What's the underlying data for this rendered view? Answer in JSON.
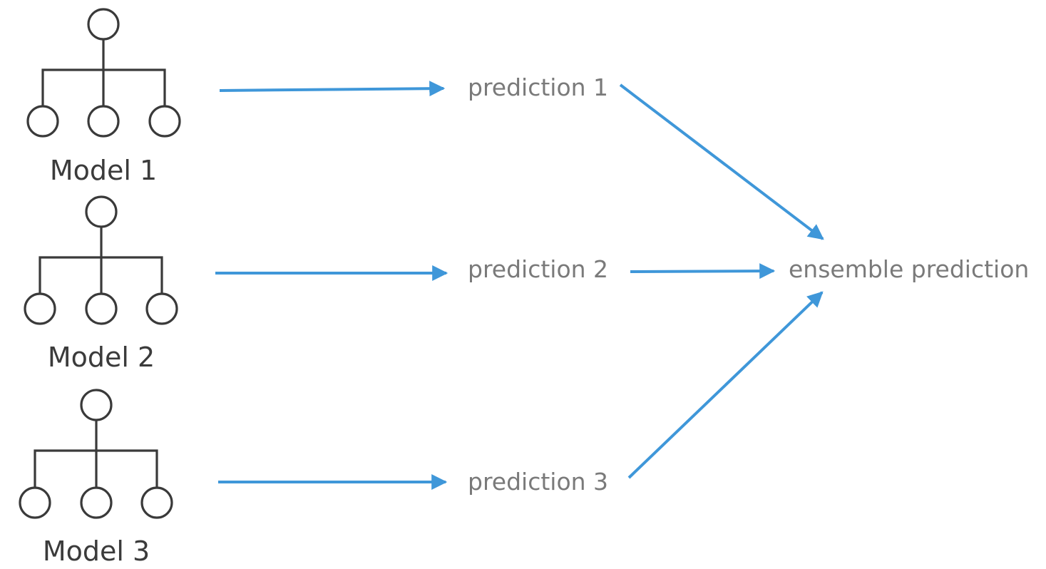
{
  "models": [
    {
      "label": "Model 1",
      "icon": "tree-icon"
    },
    {
      "label": "Model 2",
      "icon": "tree-icon"
    },
    {
      "label": "Model 3",
      "icon": "tree-icon"
    }
  ],
  "predictions": [
    {
      "label": "prediction 1"
    },
    {
      "label": "prediction 2"
    },
    {
      "label": "prediction 3"
    }
  ],
  "ensemble": {
    "label": "ensemble prediction"
  },
  "colors": {
    "arrow": "#3f97d9",
    "prediction_text": "#7a7a7a",
    "model_text": "#3b3b3b",
    "tree_stroke": "#3a3a3a"
  }
}
